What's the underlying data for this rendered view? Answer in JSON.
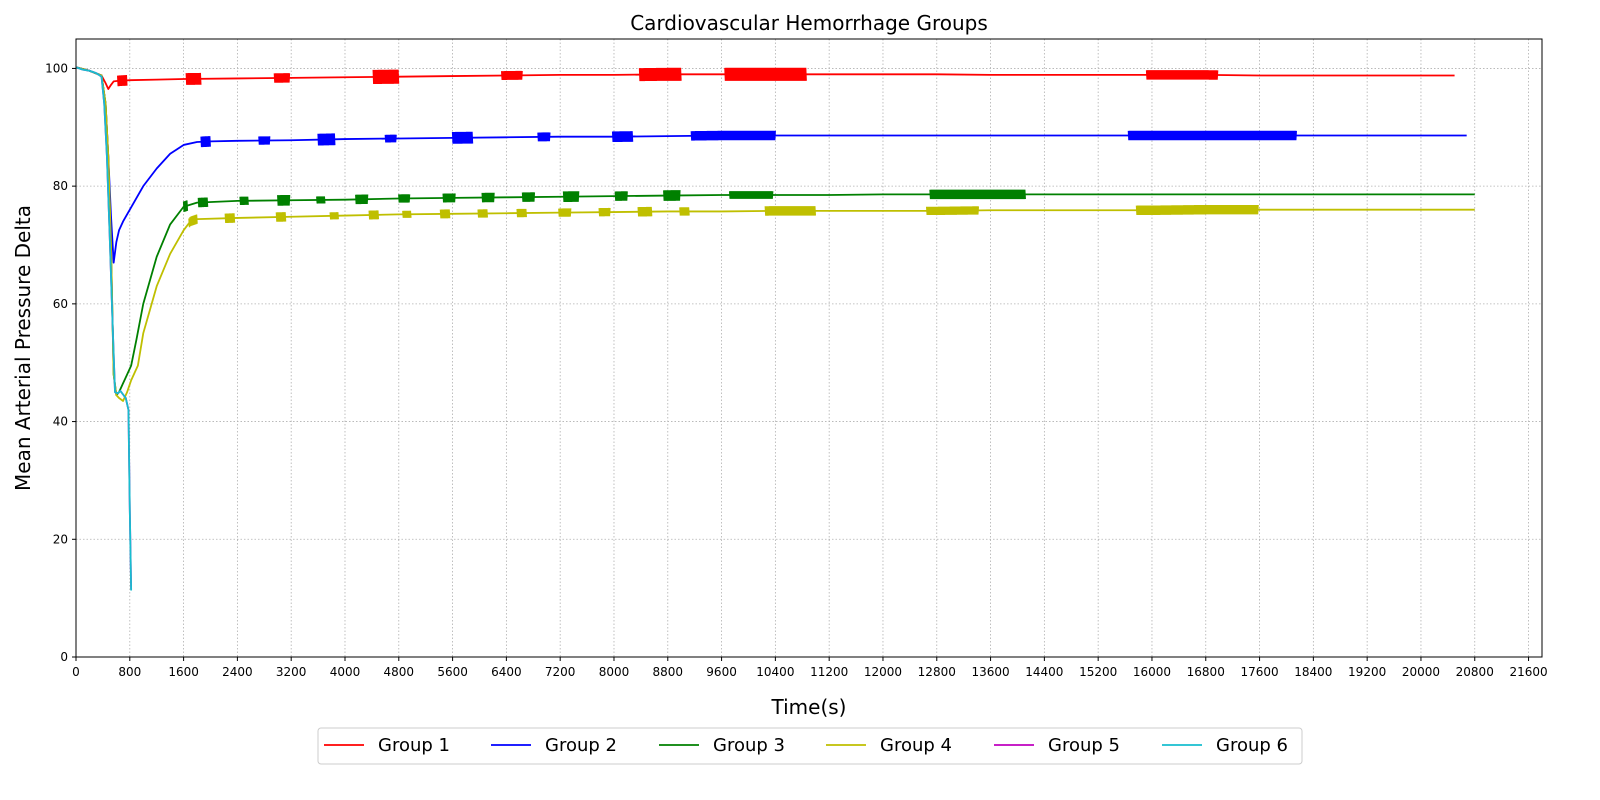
{
  "chart_data": {
    "type": "line",
    "title": "Cardiovascular Hemorrhage Groups",
    "xlabel": "Time(s)",
    "ylabel": "Mean Arterial Pressure Delta",
    "xlim": [
      0,
      21800
    ],
    "ylim": [
      0,
      105
    ],
    "x_ticks": [
      0,
      800,
      1600,
      2400,
      3200,
      4000,
      4800,
      5600,
      6400,
      7200,
      8000,
      8800,
      9600,
      10400,
      11200,
      12000,
      12800,
      13600,
      14400,
      15200,
      16000,
      16800,
      17600,
      18400,
      19200,
      20000,
      20800,
      21600
    ],
    "y_ticks": [
      0,
      20,
      40,
      60,
      80,
      100
    ],
    "grid": true,
    "legend_position": "bottom-center",
    "series": [
      {
        "name": "Group 1",
        "color": "#ff0000",
        "x": [
          0,
          200,
          380,
          440,
          480,
          520,
          560,
          640,
          800,
          1200,
          1600,
          2400,
          3200,
          4000,
          4800,
          5600,
          6400,
          7200,
          8000,
          8800,
          9600,
          10400,
          11200,
          12000,
          12800,
          13600,
          14400,
          15200,
          16000,
          16800,
          17600,
          18400,
          19200,
          20000,
          20500
        ],
        "y": [
          100.2,
          99.6,
          98.8,
          97.5,
          96.5,
          97.2,
          97.8,
          97.9,
          98.0,
          98.1,
          98.2,
          98.3,
          98.4,
          98.5,
          98.6,
          98.7,
          98.8,
          98.9,
          98.9,
          99.0,
          99.0,
          99.0,
          99.0,
          99.0,
          99.0,
          98.9,
          98.9,
          98.9,
          98.9,
          98.9,
          98.8,
          98.8,
          98.8,
          98.8,
          98.8
        ],
        "bursts": [
          [
            620,
            760,
            1.8
          ],
          [
            1640,
            1860,
            2.0
          ],
          [
            2950,
            3180,
            1.6
          ],
          [
            4420,
            4800,
            2.4
          ],
          [
            6330,
            6640,
            1.5
          ],
          [
            8380,
            9000,
            2.2
          ],
          [
            9650,
            10860,
            2.2
          ],
          [
            15920,
            16980,
            1.6
          ]
        ]
      },
      {
        "name": "Group 2",
        "color": "#0000ff",
        "x": [
          0,
          200,
          380,
          440,
          480,
          520,
          560,
          600,
          640,
          700,
          800,
          900,
          1000,
          1200,
          1400,
          1600,
          1800,
          2000,
          2400,
          3200,
          4000,
          4800,
          5600,
          6400,
          7200,
          8000,
          8800,
          9600,
          10400,
          11200,
          12000,
          12800,
          13600,
          14400,
          15200,
          16000,
          16800,
          17600,
          18400,
          19200,
          20000,
          20680
        ],
        "y": [
          100.2,
          99.6,
          98.8,
          94,
          85,
          75,
          67,
          70.5,
          72.5,
          74,
          76,
          78,
          80,
          83,
          85.5,
          87,
          87.5,
          87.6,
          87.7,
          87.8,
          88.0,
          88.1,
          88.2,
          88.3,
          88.4,
          88.4,
          88.5,
          88.6,
          88.6,
          88.6,
          88.6,
          88.6,
          88.6,
          88.6,
          88.6,
          88.6,
          88.6,
          88.6,
          88.6,
          88.6,
          88.6,
          88.6
        ],
        "bursts": [
          [
            1860,
            2000,
            1.8
          ],
          [
            2720,
            2880,
            1.4
          ],
          [
            3600,
            3850,
            2.0
          ],
          [
            4600,
            4760,
            1.3
          ],
          [
            5600,
            5900,
            2.0
          ],
          [
            6870,
            7050,
            1.5
          ],
          [
            7980,
            8280,
            1.8
          ],
          [
            9150,
            10400,
            1.6
          ],
          [
            15650,
            18150,
            1.6
          ]
        ]
      },
      {
        "name": "Group 3",
        "color": "#008000",
        "x": [
          0,
          200,
          380,
          440,
          480,
          520,
          560,
          600,
          640,
          700,
          760,
          820,
          900,
          1000,
          1200,
          1400,
          1600,
          1800,
          2400,
          3200,
          4000,
          4800,
          5600,
          6400,
          7200,
          8000,
          8800,
          9600,
          10400,
          11200,
          12000,
          12800,
          13600,
          14400,
          15200,
          16000,
          16800,
          17600,
          18400,
          19200,
          20000,
          20800
        ],
        "y": [
          100.2,
          99.6,
          98.8,
          94,
          85,
          70,
          48,
          44.5,
          45,
          46.5,
          48,
          49.5,
          54,
          60,
          68,
          73.5,
          76.5,
          77.2,
          77.5,
          77.6,
          77.7,
          77.9,
          78.0,
          78.1,
          78.2,
          78.3,
          78.4,
          78.5,
          78.5,
          78.5,
          78.6,
          78.6,
          78.6,
          78.6,
          78.6,
          78.6,
          78.6,
          78.6,
          78.6,
          78.6,
          78.6,
          78.6
        ],
        "bursts": [
          [
            1600,
            1660,
            1.8
          ],
          [
            1820,
            1960,
            1.6
          ],
          [
            2440,
            2560,
            1.4
          ],
          [
            3000,
            3180,
            1.8
          ],
          [
            3580,
            3700,
            1.2
          ],
          [
            4160,
            4340,
            1.6
          ],
          [
            4800,
            4960,
            1.4
          ],
          [
            5460,
            5640,
            1.5
          ],
          [
            6040,
            6220,
            1.6
          ],
          [
            6640,
            6820,
            1.6
          ],
          [
            7250,
            7480,
            1.8
          ],
          [
            8020,
            8200,
            1.6
          ],
          [
            8740,
            8980,
            1.8
          ],
          [
            9720,
            10360,
            1.3
          ],
          [
            12700,
            14120,
            1.6
          ]
        ]
      },
      {
        "name": "Group 4",
        "color": "#bfbf00",
        "x": [
          0,
          200,
          380,
          440,
          480,
          520,
          560,
          600,
          640,
          700,
          760,
          820,
          880,
          920,
          1000,
          1200,
          1400,
          1600,
          1700,
          1800,
          2400,
          3200,
          4000,
          4800,
          5600,
          6400,
          7200,
          8000,
          8800,
          9600,
          10400,
          11200,
          12000,
          12800,
          13600,
          14400,
          15200,
          16000,
          16800,
          17600,
          18400,
          19200,
          20000,
          20800
        ],
        "y": [
          100.2,
          99.6,
          98.8,
          94,
          85,
          70,
          48,
          44.5,
          44.0,
          43.5,
          45,
          47,
          48.5,
          49.5,
          55,
          63,
          68.5,
          72.5,
          74.0,
          74.4,
          74.6,
          74.8,
          75.0,
          75.2,
          75.3,
          75.4,
          75.5,
          75.6,
          75.7,
          75.7,
          75.8,
          75.8,
          75.8,
          75.8,
          75.9,
          75.9,
          75.9,
          75.9,
          76.0,
          76.0,
          76.0,
          76.0,
          76.0,
          76.0
        ],
        "bursts": [
          [
            1680,
            1800,
            1.6
          ],
          [
            2220,
            2360,
            1.6
          ],
          [
            2980,
            3120,
            1.6
          ],
          [
            3780,
            3900,
            1.2
          ],
          [
            4360,
            4500,
            1.5
          ],
          [
            4860,
            4980,
            1.2
          ],
          [
            5420,
            5560,
            1.5
          ],
          [
            5980,
            6120,
            1.4
          ],
          [
            6560,
            6700,
            1.4
          ],
          [
            7180,
            7360,
            1.4
          ],
          [
            7780,
            7940,
            1.4
          ],
          [
            8360,
            8560,
            1.6
          ],
          [
            8980,
            9120,
            1.4
          ],
          [
            10250,
            11000,
            1.6
          ],
          [
            12650,
            13420,
            1.4
          ],
          [
            15770,
            17580,
            1.6
          ]
        ]
      },
      {
        "name": "Group 5",
        "color": "#bf00bf",
        "x": [
          0,
          100,
          200,
          300,
          380,
          420,
          460,
          500,
          540,
          580,
          620,
          660,
          700,
          740,
          780,
          800,
          820
        ],
        "y": [
          100.2,
          99.8,
          99.6,
          99.2,
          98.6,
          94,
          85,
          72,
          58,
          45,
          44.8,
          45.2,
          44.6,
          44.0,
          42.0,
          25,
          11.5
        ]
      },
      {
        "name": "Group 6",
        "color": "#17becf",
        "x": [
          0,
          100,
          200,
          300,
          380,
          420,
          460,
          500,
          540,
          580,
          620,
          660,
          700,
          740,
          780,
          800,
          820
        ],
        "y": [
          100.2,
          99.8,
          99.6,
          99.2,
          98.6,
          94,
          85,
          72,
          58,
          45,
          44.8,
          45.2,
          44.6,
          44.0,
          42.0,
          25,
          11.3
        ]
      }
    ]
  }
}
